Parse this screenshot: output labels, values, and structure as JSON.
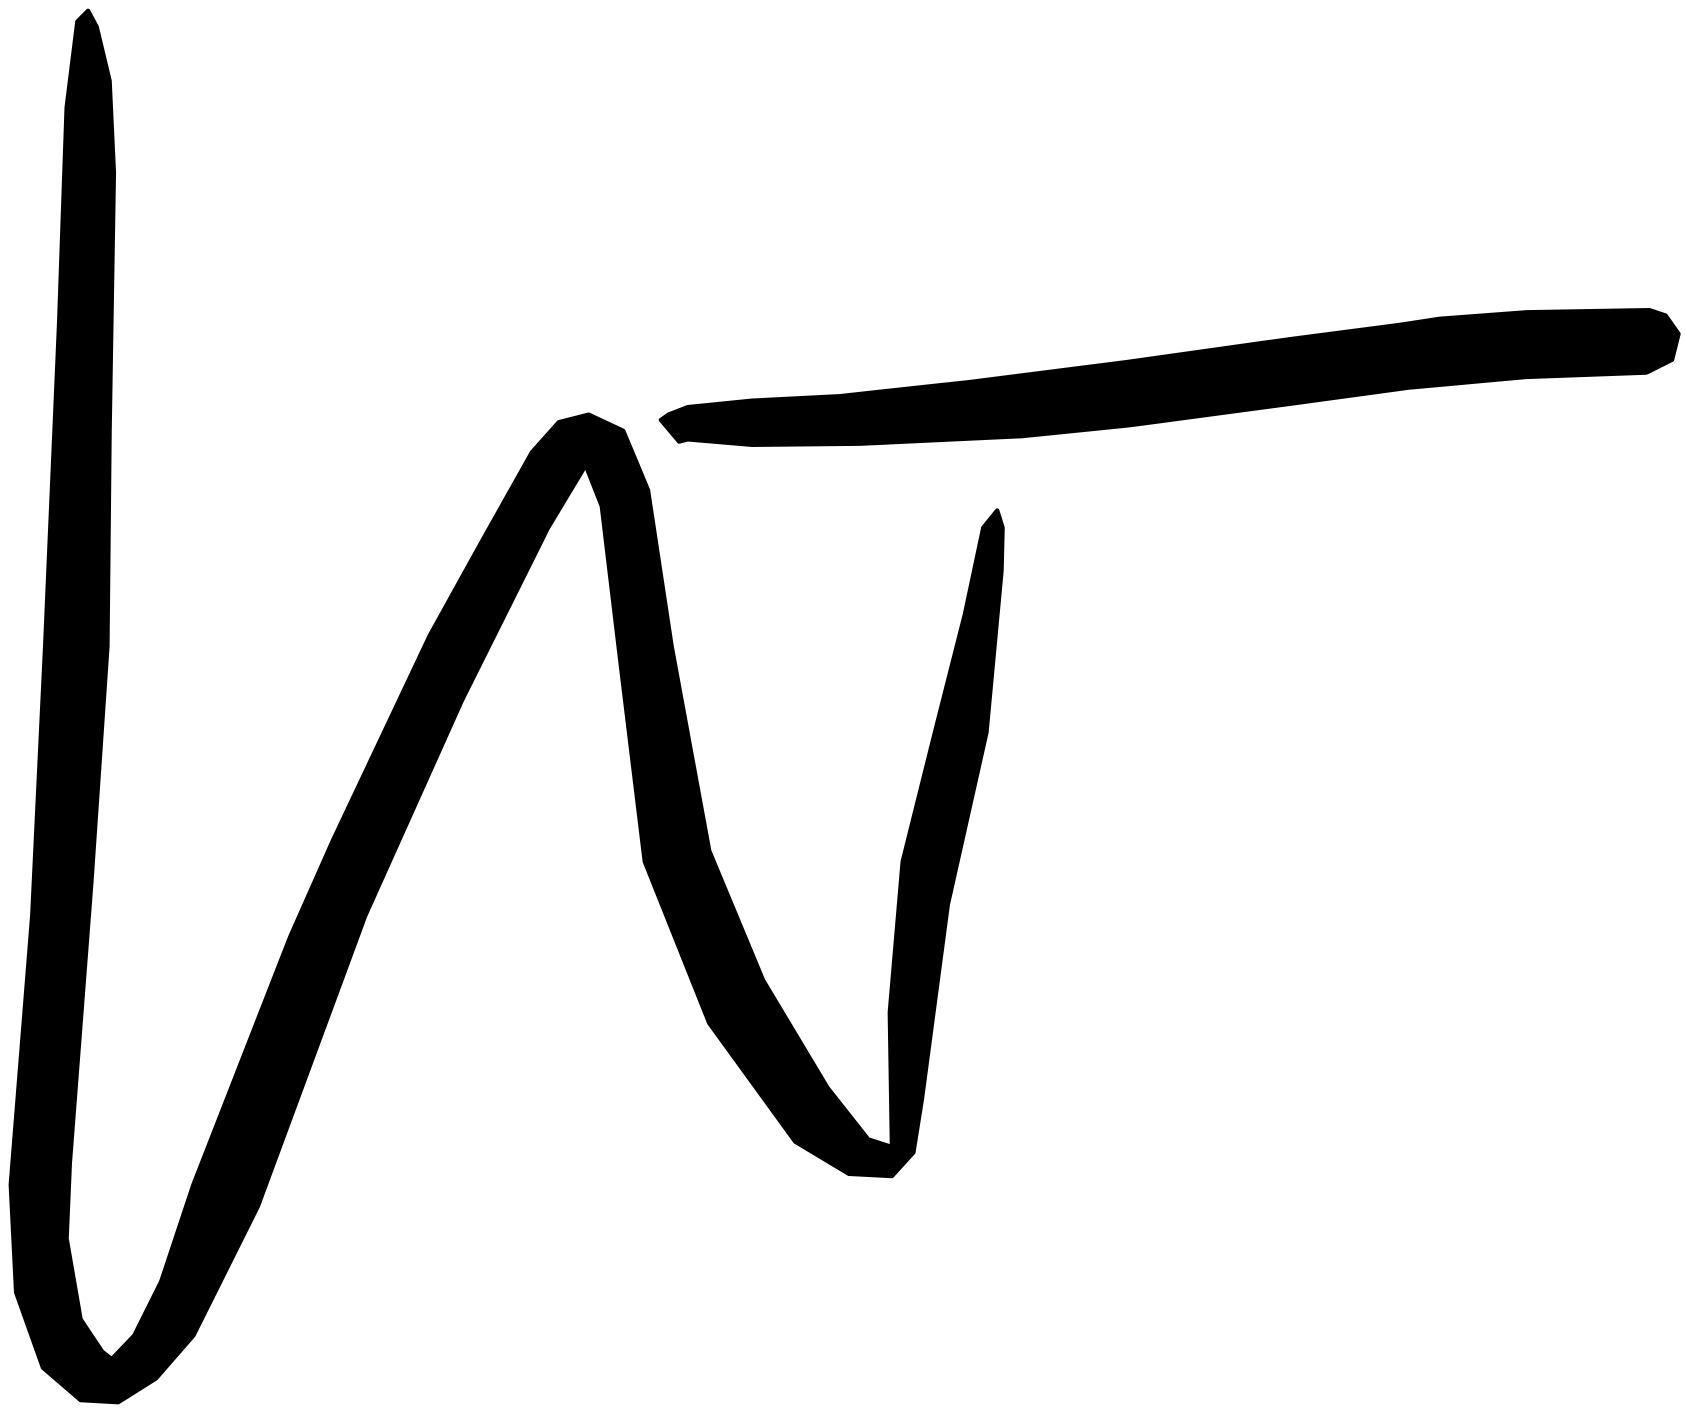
{
  "signature": {
    "ink_color": "#000000",
    "background_color": "#ffffff"
  }
}
